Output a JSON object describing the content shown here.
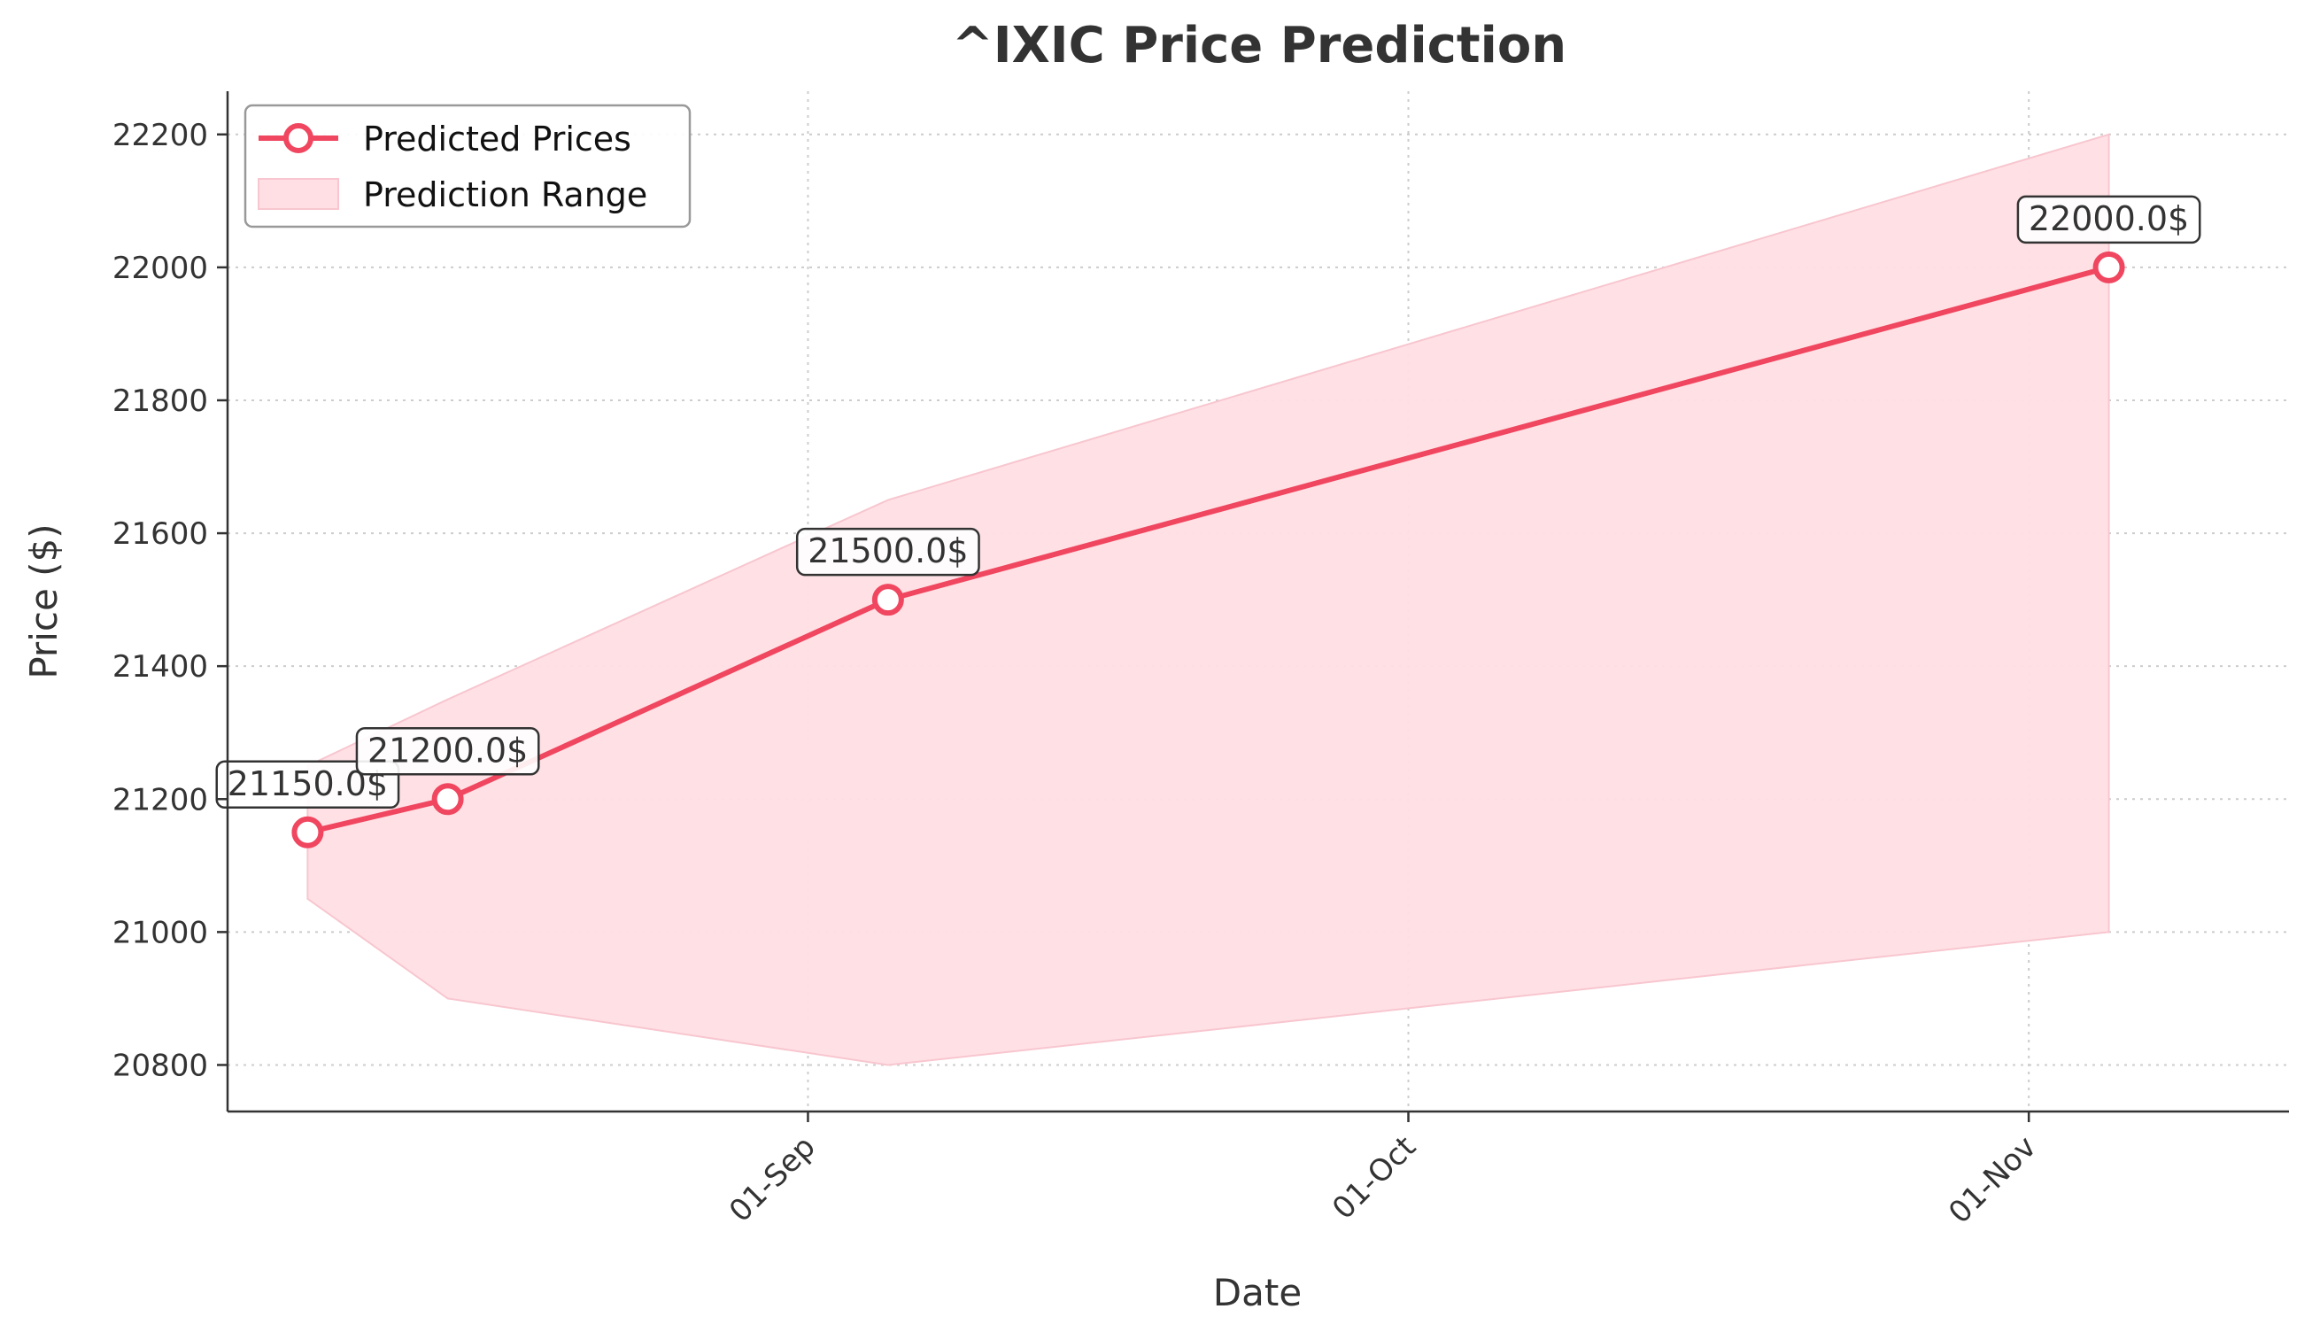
{
  "chart_data": {
    "type": "line",
    "title": "^IXIC Price Prediction",
    "xlabel": "Date",
    "ylabel": "Price ($)",
    "x": [
      "2025-08-07",
      "2025-08-14",
      "2025-09-05",
      "2025-11-05"
    ],
    "xlim": [
      "2025-08-03",
      "2025-11-14"
    ],
    "x_ticks": [
      {
        "date": "2025-09-01",
        "label": "01-Sep"
      },
      {
        "date": "2025-10-01",
        "label": "01-Oct"
      },
      {
        "date": "2025-11-01",
        "label": "01-Nov"
      }
    ],
    "ylim": [
      20730,
      22265
    ],
    "y_ticks": [
      20800,
      21000,
      21200,
      21400,
      21600,
      21800,
      22000,
      22200
    ],
    "grid": true,
    "legend_position": "top-left",
    "series": [
      {
        "name": "Predicted Prices",
        "type": "line",
        "color": "#f0465f",
        "values": [
          21150,
          21200,
          21500,
          22000
        ],
        "data_labels": [
          "21150.0$",
          "21200.0$",
          "21500.0$",
          "22000.0$"
        ]
      },
      {
        "name": "Prediction Range",
        "type": "area",
        "color": "#ffdfe4",
        "lower": [
          21050,
          20900,
          20800,
          21000
        ],
        "upper": [
          21250,
          21350,
          21650,
          22200
        ]
      }
    ]
  }
}
